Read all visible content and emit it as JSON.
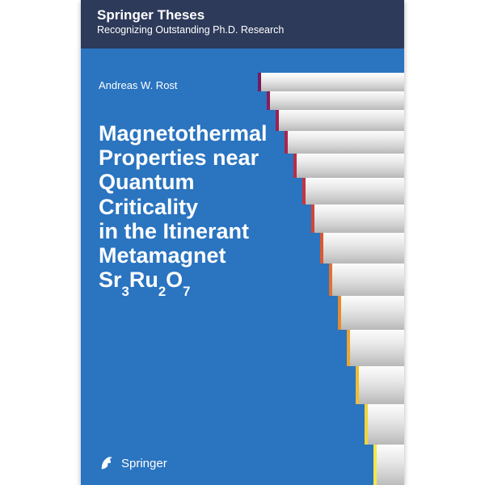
{
  "series": {
    "title": "Springer Theses",
    "subtitle": "Recognizing Outstanding Ph.D. Research"
  },
  "author": "Andreas W. Rost",
  "title_lines": [
    "Magnetothermal",
    "Properties near",
    "Quantum Criticality",
    "in the Itinerant",
    "Metamagnet"
  ],
  "formula": {
    "base": "Sr",
    "s1": "3",
    "mid": "Ru",
    "s2": "2",
    "end": "O",
    "s3": "7"
  },
  "publisher": "Springer",
  "colors": {
    "top_band": "#2d3a5a",
    "main_bg": "#2a74c0",
    "text": "#ffffff"
  },
  "stairs": {
    "count": 14,
    "tick_colors": [
      "#f5e748",
      "#f2d43a",
      "#eebd33",
      "#e9a52f",
      "#e48b2e",
      "#df7230",
      "#d75934",
      "#cf4539",
      "#c5363f",
      "#ba2c45",
      "#ab254c",
      "#9a2153",
      "#871e59",
      "#731c5e"
    ]
  }
}
